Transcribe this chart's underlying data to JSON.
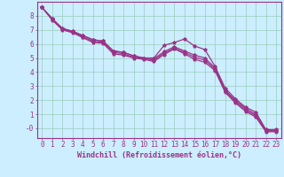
{
  "bg_color": "#cceeff",
  "line_color": "#993388",
  "grid_color": "#99ccbb",
  "xlabel": "Windchill (Refroidissement éolien,°C)",
  "xlim": [
    -0.5,
    23.5
  ],
  "ylim": [
    -0.7,
    9.0
  ],
  "xticks": [
    0,
    1,
    2,
    3,
    4,
    5,
    6,
    7,
    8,
    9,
    10,
    11,
    12,
    13,
    14,
    15,
    16,
    17,
    18,
    19,
    20,
    21,
    22,
    23
  ],
  "yticks": [
    0,
    1,
    2,
    3,
    4,
    5,
    6,
    7,
    8
  ],
  "ytick_labels": [
    "-0",
    "1",
    "2",
    "3",
    "4",
    "5",
    "6",
    "7",
    "8"
  ],
  "lines": [
    [
      0,
      8.6,
      1,
      7.8,
      2,
      7.1,
      3,
      6.9,
      4,
      6.6,
      5,
      6.3,
      6,
      6.2,
      7,
      5.5,
      8,
      5.4,
      9,
      5.15,
      10,
      5.0,
      11,
      5.0,
      12,
      5.9,
      13,
      6.1,
      14,
      6.35,
      15,
      5.85,
      16,
      5.6,
      17,
      4.4,
      18,
      2.85,
      19,
      2.1,
      20,
      1.5,
      21,
      1.15,
      22,
      -0.1,
      23,
      -0.1
    ],
    [
      0,
      8.6,
      1,
      7.8,
      2,
      7.1,
      3,
      6.9,
      4,
      6.6,
      5,
      6.3,
      6,
      6.2,
      7,
      5.5,
      8,
      5.4,
      9,
      5.15,
      10,
      5.0,
      11,
      4.95,
      12,
      5.45,
      13,
      5.8,
      14,
      5.5,
      15,
      5.2,
      16,
      5.0,
      17,
      4.3,
      18,
      2.7,
      19,
      2.0,
      20,
      1.4,
      21,
      1.0,
      22,
      -0.15,
      23,
      -0.15
    ],
    [
      0,
      8.6,
      1,
      7.75,
      2,
      7.05,
      3,
      6.85,
      4,
      6.5,
      5,
      6.2,
      6,
      6.1,
      7,
      5.4,
      8,
      5.3,
      9,
      5.05,
      10,
      4.95,
      11,
      4.85,
      12,
      5.35,
      13,
      5.7,
      14,
      5.4,
      15,
      5.05,
      16,
      4.85,
      17,
      4.2,
      18,
      2.65,
      19,
      1.9,
      20,
      1.3,
      21,
      0.9,
      22,
      -0.2,
      23,
      -0.2
    ],
    [
      0,
      8.6,
      1,
      7.7,
      2,
      7.0,
      3,
      6.8,
      4,
      6.45,
      5,
      6.1,
      6,
      6.05,
      7,
      5.3,
      8,
      5.2,
      9,
      5.0,
      10,
      4.9,
      11,
      4.75,
      12,
      5.25,
      13,
      5.65,
      14,
      5.3,
      15,
      4.9,
      16,
      4.7,
      17,
      4.1,
      18,
      2.55,
      19,
      1.8,
      20,
      1.2,
      21,
      0.8,
      22,
      -0.25,
      23,
      -0.25
    ]
  ],
  "font_size_ticks": 5.5,
  "font_size_xlabel": 6.0,
  "marker_size": 2.8,
  "line_width": 0.9
}
